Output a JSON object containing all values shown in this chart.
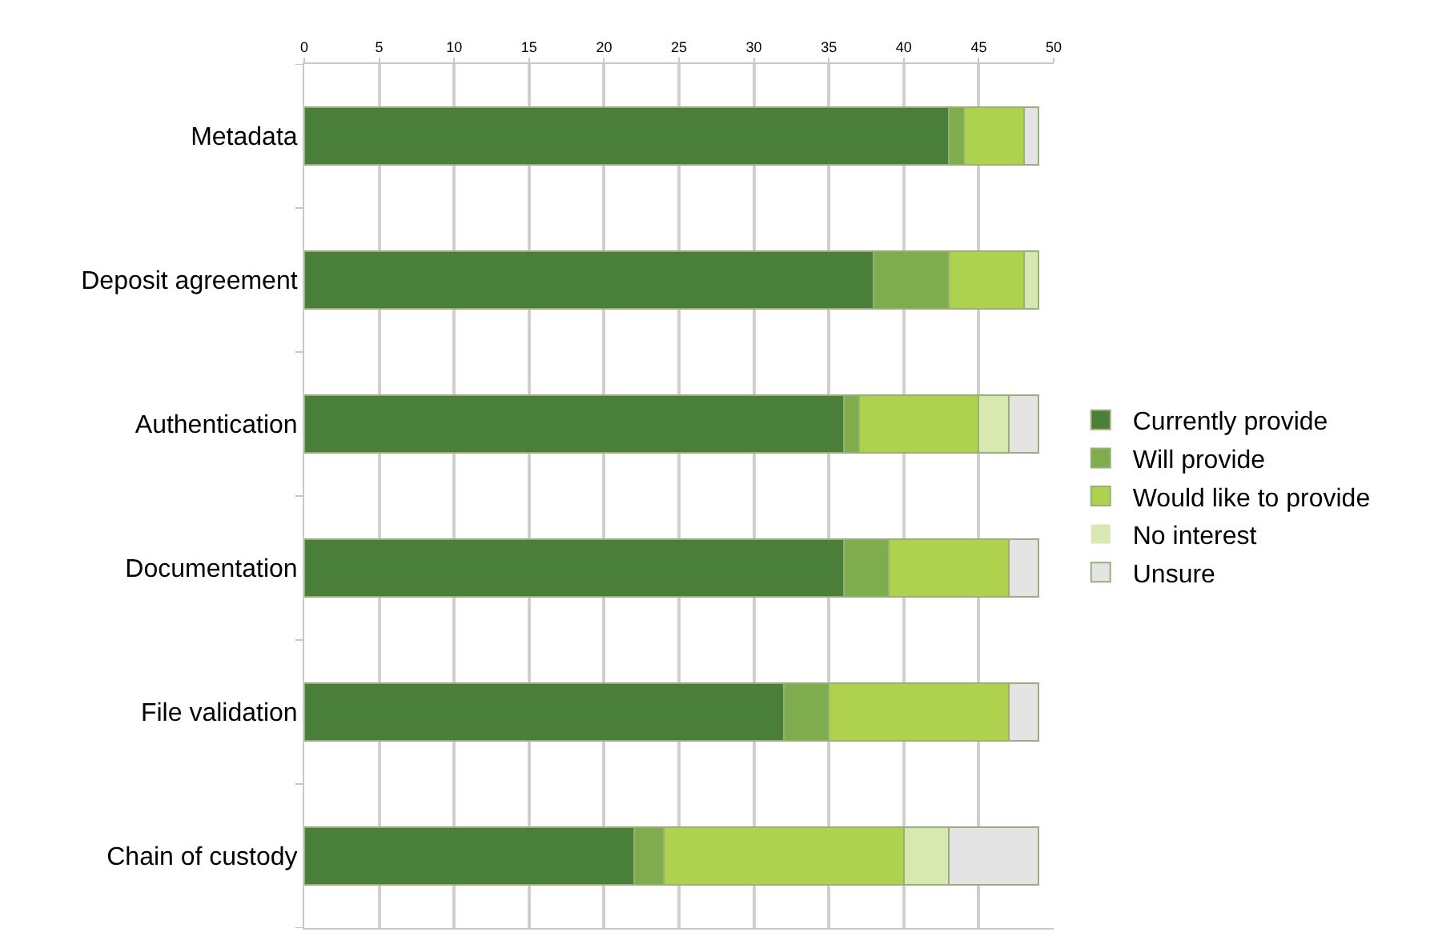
{
  "chart_data": {
    "type": "bar",
    "orientation": "horizontal",
    "stacked": true,
    "categories": [
      "Metadata",
      "Deposit agreement",
      "Authentication",
      "Documentation",
      "File validation",
      "Chain of custody"
    ],
    "series": [
      {
        "name": "Currently provide",
        "color": "#4a7f3a",
        "values": [
          43,
          38,
          36,
          36,
          32,
          22
        ]
      },
      {
        "name": "Will provide",
        "color": "#7fac4c",
        "values": [
          1,
          5,
          1,
          3,
          3,
          2
        ]
      },
      {
        "name": "Would like to provide",
        "color": "#aed14e",
        "values": [
          4,
          5,
          8,
          8,
          12,
          16
        ]
      },
      {
        "name": "No interest",
        "color": "#d9e8b0",
        "values": [
          0,
          1,
          2,
          0,
          0,
          3
        ]
      },
      {
        "name": "Unsure",
        "color": "#e3e4e3",
        "values": [
          1,
          0,
          2,
          2,
          2,
          6
        ]
      }
    ],
    "xlim": [
      0,
      50
    ],
    "xticks": [
      0,
      5,
      10,
      15,
      20,
      25,
      30,
      35,
      40,
      45,
      50
    ],
    "grid": "x",
    "legend": "right"
  }
}
